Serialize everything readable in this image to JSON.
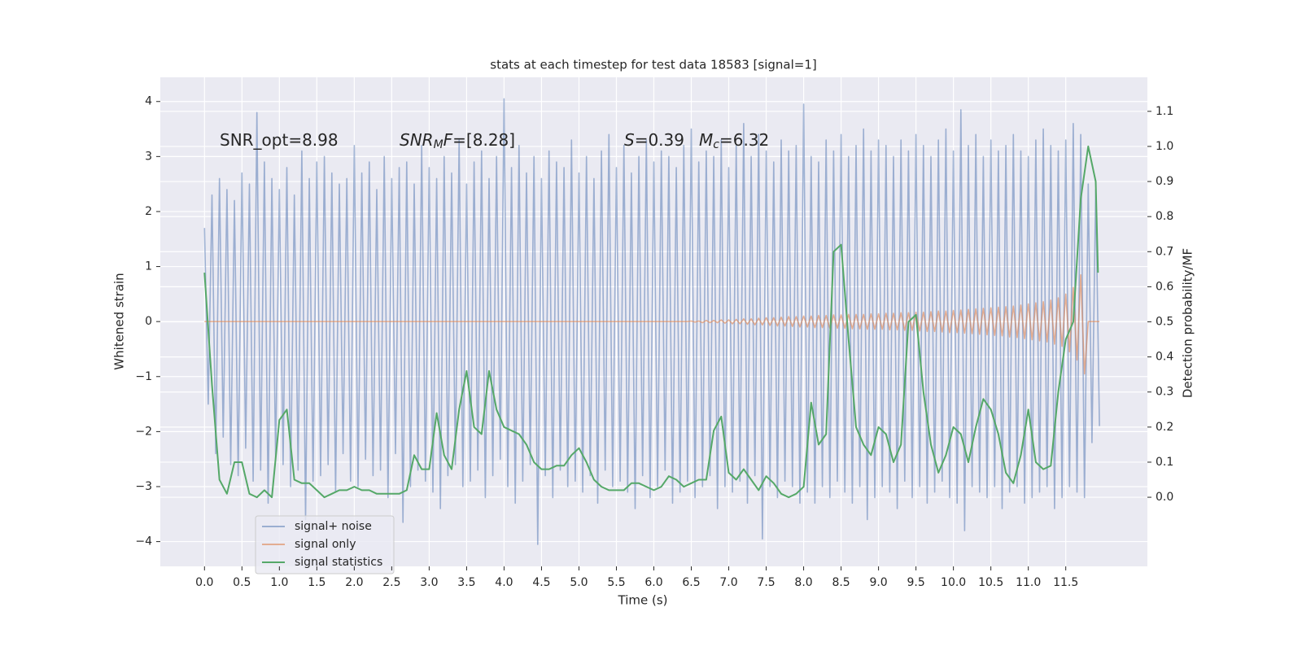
{
  "chart_data": {
    "type": "line",
    "title": "stats at each timestep for test data 18583 [signal=1]",
    "xlabel": "Time (s)",
    "ylabel": "Whitened strain",
    "y2label": "Detection probability/MF",
    "annotations": [
      [
        {
          "text": "SNR_opt=8.98"
        }
      ],
      [
        {
          "text": "SNR",
          "italic": true
        },
        {
          "text": "M",
          "italic": true,
          "sub": true
        },
        {
          "text": "F",
          "italic": true
        },
        {
          "text": "=[8.28]"
        }
      ],
      [
        {
          "text": "S",
          "italic": true
        },
        {
          "text": "=0.39"
        }
      ],
      [
        {
          "text": "M",
          "italic": true
        },
        {
          "text": "c",
          "italic": true,
          "sub": true
        },
        {
          "text": "=6.32"
        }
      ]
    ],
    "xlim": [
      -0.59,
      12.59
    ],
    "ylim": [
      -4.45,
      4.44
    ],
    "y2lim": [
      -0.197,
      1.197
    ],
    "xticks": [
      {
        "value": 0,
        "label": "0.0"
      },
      0.5,
      {
        "value": 1,
        "label": "1.0"
      },
      1.5,
      {
        "value": 2,
        "label": "2.0"
      },
      2.5,
      {
        "value": 3,
        "label": "3.0"
      },
      3.5,
      {
        "value": 4,
        "label": "4.0"
      },
      4.5,
      {
        "value": 5,
        "label": "5.0"
      },
      5.5,
      {
        "value": 6,
        "label": "6.0"
      },
      6.5,
      {
        "value": 7,
        "label": "7.0"
      },
      7.5,
      {
        "value": 8,
        "label": "8.0"
      },
      8.5,
      {
        "value": 9,
        "label": "9.0"
      },
      9.5,
      {
        "value": 10,
        "label": "10.0"
      },
      10.5,
      {
        "value": 11,
        "label": "11.0"
      },
      11.5
    ],
    "yticks": [
      {
        "value": -4,
        "label": "−4"
      },
      {
        "value": -3,
        "label": "−3"
      },
      {
        "value": -2,
        "label": "−2"
      },
      {
        "value": -1,
        "label": "−1"
      },
      0,
      1,
      2,
      3,
      4
    ],
    "y2ticks": [
      {
        "value": 0,
        "label": "0.0"
      },
      0.1,
      0.2,
      0.3,
      0.4,
      0.5,
      0.6,
      0.7,
      0.8,
      0.9,
      {
        "value": 1,
        "label": "1.0"
      },
      1.1
    ],
    "grid": true,
    "legend": "lower left",
    "x": [
      0,
      0.05,
      0.1,
      0.15,
      0.2,
      0.25,
      0.3,
      0.35,
      0.4,
      0.45,
      0.5,
      0.55,
      0.6,
      0.65,
      0.7,
      0.75,
      0.8,
      0.85,
      0.9,
      0.95,
      1,
      1.05,
      1.1,
      1.15,
      1.2,
      1.25,
      1.3,
      1.35,
      1.4,
      1.45,
      1.5,
      1.55,
      1.6,
      1.65,
      1.7,
      1.75,
      1.8,
      1.85,
      1.9,
      1.95,
      2,
      2.05,
      2.1,
      2.15,
      2.2,
      2.25,
      2.3,
      2.35,
      2.4,
      2.45,
      2.5,
      2.55,
      2.6,
      2.65,
      2.7,
      2.75,
      2.8,
      2.85,
      2.9,
      2.95,
      3,
      3.05,
      3.1,
      3.15,
      3.2,
      3.25,
      3.3,
      3.35,
      3.4,
      3.45,
      3.5,
      3.55,
      3.6,
      3.65,
      3.7,
      3.75,
      3.8,
      3.85,
      3.9,
      3.95,
      4,
      4.05,
      4.1,
      4.15,
      4.2,
      4.25,
      4.3,
      4.35,
      4.4,
      4.45,
      4.5,
      4.55,
      4.6,
      4.65,
      4.7,
      4.75,
      4.8,
      4.85,
      4.9,
      4.95,
      5,
      5.05,
      5.1,
      5.15,
      5.2,
      5.25,
      5.3,
      5.35,
      5.4,
      5.45,
      5.5,
      5.55,
      5.6,
      5.65,
      5.7,
      5.75,
      5.8,
      5.85,
      5.9,
      5.95,
      6,
      6.05,
      6.1,
      6.15,
      6.2,
      6.25,
      6.3,
      6.35,
      6.4,
      6.45,
      6.5,
      6.55,
      6.6,
      6.65,
      6.7,
      6.75,
      6.8,
      6.85,
      6.9,
      6.95,
      7,
      7.05,
      7.1,
      7.15,
      7.2,
      7.25,
      7.3,
      7.35,
      7.4,
      7.45,
      7.5,
      7.55,
      7.6,
      7.65,
      7.7,
      7.75,
      7.8,
      7.85,
      7.9,
      7.95,
      8,
      8.05,
      8.1,
      8.15,
      8.2,
      8.25,
      8.3,
      8.35,
      8.4,
      8.45,
      8.5,
      8.55,
      8.6,
      8.65,
      8.7,
      8.75,
      8.8,
      8.85,
      8.9,
      8.95,
      9,
      9.05,
      9.1,
      9.15,
      9.2,
      9.25,
      9.3,
      9.35,
      9.4,
      9.45,
      9.5,
      9.55,
      9.6,
      9.65,
      9.7,
      9.75,
      9.8,
      9.85,
      9.9,
      9.95,
      10,
      10.05,
      10.1,
      10.15,
      10.2,
      10.25,
      10.3,
      10.35,
      10.4,
      10.45,
      10.5,
      10.55,
      10.6,
      10.65,
      10.7,
      10.75,
      10.8,
      10.85,
      10.9,
      10.95,
      11,
      11.05,
      11.1,
      11.15,
      11.2,
      11.25,
      11.3,
      11.35,
      11.4,
      11.45,
      11.5,
      11.55,
      11.6,
      11.65,
      11.7,
      11.75,
      11.8,
      11.85,
      11.9,
      11.95
    ],
    "series": [
      {
        "name": "signal+ noise",
        "color": "#4c72b0",
        "values": [
          1.7,
          -1.5,
          2.3,
          -2.4,
          2.6,
          -2.1,
          2.4,
          -2.6,
          2.2,
          -2.8,
          2.7,
          -2.3,
          2.5,
          -2.9,
          3.8,
          -2.7,
          2.9,
          -3.3,
          2.6,
          -2.5,
          2.4,
          -2.6,
          2.8,
          -3.0,
          2.3,
          -2.7,
          3.1,
          -3.6,
          2.6,
          -2.9,
          2.9,
          -2.8,
          3.0,
          -2.6,
          2.7,
          -3.1,
          2.5,
          -2.4,
          2.6,
          -2.9,
          3.2,
          -3.0,
          2.7,
          -2.5,
          2.9,
          -2.8,
          2.4,
          -2.7,
          3.0,
          -3.2,
          2.6,
          -2.4,
          2.8,
          -3.65,
          2.9,
          -3.0,
          2.5,
          -2.7,
          3.2,
          -2.9,
          2.8,
          -3.1,
          2.6,
          -3.4,
          3.0,
          -2.8,
          2.7,
          -2.6,
          3.3,
          -3.0,
          2.5,
          -2.9,
          2.9,
          -2.7,
          3.1,
          -3.2,
          2.6,
          -2.8,
          3.0,
          -2.5,
          4.05,
          -3.0,
          2.8,
          -3.3,
          3.2,
          -2.9,
          2.7,
          -2.6,
          3.0,
          -4.05,
          2.6,
          -2.8,
          3.1,
          -3.2,
          2.9,
          -2.7,
          2.8,
          -3.0,
          3.3,
          -2.9,
          2.7,
          -3.1,
          3.0,
          -2.8,
          2.6,
          -3.3,
          3.1,
          -2.7,
          3.4,
          -3.0,
          2.8,
          -2.9,
          3.2,
          -3.1,
          2.7,
          -3.4,
          3.0,
          -2.8,
          3.3,
          -3.2,
          2.9,
          -3.0,
          3.1,
          -2.7,
          3.0,
          -3.3,
          2.8,
          -3.1,
          3.2,
          -2.9,
          3.5,
          -3.2,
          2.9,
          -3.0,
          3.1,
          -2.8,
          3.0,
          -3.4,
          3.3,
          -3.0,
          2.8,
          -3.1,
          3.2,
          -2.9,
          3.6,
          -3.3,
          3.0,
          -2.8,
          3.4,
          -3.95,
          3.1,
          -3.0,
          2.9,
          -3.2,
          3.3,
          -2.9,
          3.1,
          -3.0,
          3.2,
          -3.3,
          3.95,
          -3.1,
          3.0,
          -3.3,
          2.9,
          -3.0,
          3.3,
          -3.2,
          3.1,
          -2.9,
          3.4,
          -3.1,
          3.0,
          -3.3,
          3.2,
          -3.0,
          3.5,
          -3.6,
          3.1,
          -3.2,
          3.3,
          -3.0,
          3.2,
          -3.1,
          3.0,
          -3.4,
          3.3,
          -2.9,
          3.1,
          -3.2,
          3.4,
          -3.0,
          3.2,
          -3.3,
          3.0,
          -3.1,
          3.3,
          -2.9,
          3.5,
          -3.2,
          3.1,
          -3.3,
          3.85,
          -3.8,
          3.2,
          -3.0,
          3.4,
          -3.1,
          3.0,
          -3.2,
          3.3,
          -3.0,
          3.1,
          -3.4,
          3.2,
          -3.1,
          3.4,
          -3.0,
          3.1,
          -3.3,
          3.0,
          -3.2,
          3.3,
          -3.1,
          3.5,
          -3.0,
          3.2,
          -3.4,
          3.1,
          -3.2,
          3.3,
          -3.0,
          3.6,
          -3.1,
          3.4,
          -3.2,
          2.5,
          -2.2,
          2.4,
          -1.9
        ]
      },
      {
        "name": "signal only",
        "color": "#dd8452",
        "values": [
          0,
          0,
          0,
          0,
          0,
          0,
          0,
          0,
          0,
          0,
          0,
          0,
          0,
          0,
          0,
          0,
          0,
          0,
          0,
          0,
          0,
          0,
          0,
          0,
          0,
          0,
          0,
          0,
          0,
          0,
          0,
          0,
          0,
          0,
          0,
          0,
          0,
          0,
          0,
          0,
          0,
          0,
          0,
          0,
          0,
          0,
          0,
          0,
          0,
          0,
          0,
          0,
          0,
          0,
          0,
          0,
          0,
          0,
          0,
          0,
          0,
          0,
          0,
          0,
          0,
          0,
          0,
          0,
          0,
          0,
          0,
          0,
          0,
          0,
          0,
          0,
          0,
          0,
          0,
          0,
          0,
          0,
          0,
          0,
          0,
          0,
          0,
          0,
          0,
          0,
          0,
          0,
          0,
          0,
          0,
          0,
          0,
          0,
          0,
          0,
          0,
          0,
          0,
          0,
          0,
          0,
          0,
          0,
          0,
          0,
          0,
          0,
          0,
          0,
          0,
          0,
          0,
          0,
          0,
          0,
          0,
          0,
          0,
          0,
          0,
          0,
          0,
          0,
          0,
          0,
          0.01,
          -0.01,
          0.01,
          -0.02,
          0.02,
          -0.02,
          0.02,
          -0.02,
          0.03,
          -0.03,
          0.03,
          -0.04,
          0.04,
          -0.04,
          0.05,
          -0.05,
          0.05,
          -0.06,
          0.06,
          -0.06,
          0.07,
          -0.07,
          0.07,
          -0.08,
          0.08,
          -0.08,
          0.09,
          -0.09,
          0.09,
          -0.1,
          0.1,
          -0.1,
          0.1,
          -0.11,
          0.11,
          -0.11,
          0.11,
          -0.12,
          0.12,
          -0.12,
          0.12,
          -0.12,
          0.13,
          -0.13,
          0.13,
          -0.13,
          0.13,
          -0.14,
          0.14,
          -0.14,
          0.14,
          -0.14,
          0.15,
          -0.15,
          0.15,
          -0.15,
          0.16,
          -0.16,
          0.16,
          -0.16,
          0.17,
          -0.17,
          0.17,
          -0.18,
          0.18,
          -0.18,
          0.19,
          -0.19,
          0.19,
          -0.2,
          0.2,
          -0.2,
          0.21,
          -0.21,
          0.22,
          -0.22,
          0.23,
          -0.23,
          0.24,
          -0.24,
          0.25,
          -0.25,
          0.26,
          -0.26,
          0.27,
          -0.28,
          0.28,
          -0.29,
          0.3,
          -0.31,
          0.32,
          -0.33,
          0.34,
          -0.35,
          0.36,
          -0.37,
          0.39,
          -0.41,
          0.43,
          -0.45,
          0.5,
          -0.55,
          0.62,
          -0.7,
          0.85,
          -0.95,
          0,
          0,
          0,
          0
        ]
      },
      {
        "name": "signal statistics",
        "color": "#55a868",
        "axis": "y2",
        "x": [
          0,
          0.1,
          0.2,
          0.3,
          0.4,
          0.5,
          0.6,
          0.7,
          0.8,
          0.9,
          1,
          1.1,
          1.2,
          1.3,
          1.4,
          1.5,
          1.6,
          1.7,
          1.8,
          1.9,
          2,
          2.1,
          2.2,
          2.3,
          2.4,
          2.5,
          2.6,
          2.7,
          2.8,
          2.9,
          3,
          3.1,
          3.2,
          3.3,
          3.4,
          3.5,
          3.6,
          3.7,
          3.8,
          3.9,
          4,
          4.1,
          4.2,
          4.3,
          4.4,
          4.5,
          4.6,
          4.7,
          4.8,
          4.9,
          5,
          5.1,
          5.2,
          5.3,
          5.4,
          5.5,
          5.6,
          5.7,
          5.8,
          5.9,
          6,
          6.1,
          6.2,
          6.3,
          6.4,
          6.5,
          6.6,
          6.7,
          6.8,
          6.9,
          7,
          7.1,
          7.2,
          7.3,
          7.4,
          7.5,
          7.6,
          7.7,
          7.8,
          7.9,
          8,
          8.1,
          8.2,
          8.3,
          8.4,
          8.5,
          8.6,
          8.7,
          8.8,
          8.9,
          9,
          9.1,
          9.2,
          9.3,
          9.4,
          9.5,
          9.6,
          9.7,
          9.8,
          9.9,
          10,
          10.1,
          10.2,
          10.3,
          10.4,
          10.5,
          10.6,
          10.7,
          10.8,
          10.9,
          11,
          11.1,
          11.2,
          11.3,
          11.4,
          11.5,
          11.6,
          11.7,
          11.8,
          11.9,
          11.93
        ],
        "values": [
          0.64,
          0.32,
          0.05,
          0.01,
          0.1,
          0.1,
          0.01,
          0,
          0.02,
          0,
          0.22,
          0.25,
          0.05,
          0.04,
          0.04,
          0.02,
          0,
          0.01,
          0.02,
          0.02,
          0.03,
          0.02,
          0.02,
          0.01,
          0.01,
          0.01,
          0.01,
          0.02,
          0.12,
          0.08,
          0.08,
          0.24,
          0.12,
          0.08,
          0.25,
          0.36,
          0.2,
          0.18,
          0.36,
          0.25,
          0.2,
          0.19,
          0.18,
          0.15,
          0.1,
          0.08,
          0.08,
          0.09,
          0.09,
          0.12,
          0.14,
          0.1,
          0.05,
          0.03,
          0.02,
          0.02,
          0.02,
          0.04,
          0.04,
          0.03,
          0.02,
          0.03,
          0.06,
          0.05,
          0.03,
          0.04,
          0.05,
          0.05,
          0.19,
          0.23,
          0.07,
          0.05,
          0.08,
          0.05,
          0.02,
          0.06,
          0.04,
          0.01,
          0,
          0.01,
          0.03,
          0.27,
          0.15,
          0.18,
          0.7,
          0.72,
          0.45,
          0.2,
          0.15,
          0.12,
          0.2,
          0.18,
          0.1,
          0.15,
          0.5,
          0.52,
          0.3,
          0.15,
          0.07,
          0.12,
          0.2,
          0.18,
          0.1,
          0.2,
          0.28,
          0.25,
          0.18,
          0.07,
          0.04,
          0.12,
          0.25,
          0.1,
          0.08,
          0.09,
          0.3,
          0.45,
          0.5,
          0.85,
          1.0,
          0.9,
          0.64
        ]
      }
    ]
  }
}
